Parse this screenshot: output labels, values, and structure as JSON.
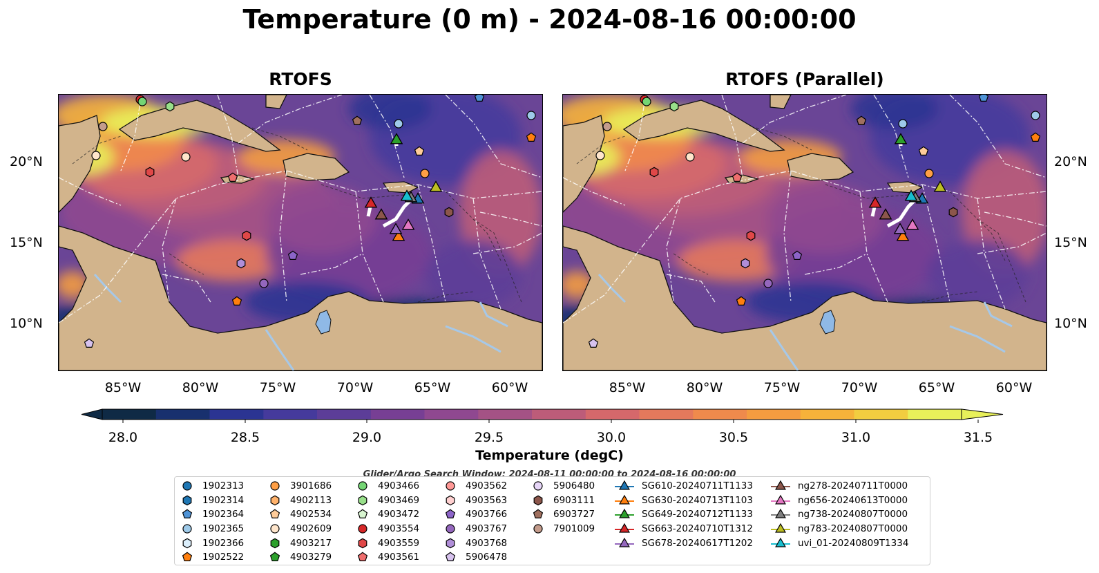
{
  "title": "Temperature (0 m) - 2024-08-16 00:00:00",
  "panels": [
    {
      "title": "RTOFS"
    },
    {
      "title": "RTOFS (Parallel)"
    }
  ],
  "axes": {
    "lat_labels": [
      "20°N",
      "15°N",
      "10°N"
    ],
    "lon_labels": [
      "85°W",
      "80°W",
      "75°W",
      "70°W",
      "65°W",
      "60°W"
    ]
  },
  "colorbar": {
    "label": "Temperature (degC)",
    "ticks": [
      "28.0",
      "28.5",
      "29.0",
      "29.5",
      "30.0",
      "30.5",
      "31.0",
      "31.5"
    ],
    "colors": [
      "#0f2a45",
      "#18306e",
      "#2b3492",
      "#453a9c",
      "#5c3d98",
      "#773f94",
      "#8f4890",
      "#a45285",
      "#bd5c79",
      "#d5686b",
      "#e4795c",
      "#ef8a4c",
      "#f49c40",
      "#f6b23a",
      "#f2cd40",
      "#e8f05a"
    ]
  },
  "search_window": "Glider/Argo Search Window: 2024-08-11 00:00:00 to 2024-08-16 00:00:00",
  "legend": {
    "argo": [
      {
        "label": "1902313",
        "shape": "circle",
        "color": "#1f77b4"
      },
      {
        "label": "1902314",
        "shape": "hexagon",
        "color": "#1f77b4"
      },
      {
        "label": "1902364",
        "shape": "pentagon",
        "color": "#4f93d6"
      },
      {
        "label": "1902365",
        "shape": "circle",
        "color": "#9ecae9"
      },
      {
        "label": "1902366",
        "shape": "hexagon",
        "color": "#dbeefb"
      },
      {
        "label": "1902522",
        "shape": "pentagon",
        "color": "#ff7f0e"
      },
      {
        "label": "3901686",
        "shape": "circle",
        "color": "#ff9f45"
      },
      {
        "label": "4902113",
        "shape": "hexagon",
        "color": "#ffb26b"
      },
      {
        "label": "4902534",
        "shape": "pentagon",
        "color": "#ffcc99"
      },
      {
        "label": "4902609",
        "shape": "circle",
        "color": "#ffe6cc"
      },
      {
        "label": "4903217",
        "shape": "hexagon",
        "color": "#2ca02c"
      },
      {
        "label": "4903279",
        "shape": "pentagon",
        "color": "#2ca02c"
      },
      {
        "label": "4903466",
        "shape": "circle",
        "color": "#74d574"
      },
      {
        "label": "4903469",
        "shape": "hexagon",
        "color": "#98df8a"
      },
      {
        "label": "4903472",
        "shape": "pentagon",
        "color": "#d8f5d0"
      },
      {
        "label": "4903554",
        "shape": "circle",
        "color": "#d62728"
      },
      {
        "label": "4903559",
        "shape": "hexagon",
        "color": "#e04848"
      },
      {
        "label": "4903561",
        "shape": "pentagon",
        "color": "#ef6e6e"
      },
      {
        "label": "4903562",
        "shape": "circle",
        "color": "#ff9896"
      },
      {
        "label": "4903563",
        "shape": "hexagon",
        "color": "#ffd0d0"
      },
      {
        "label": "4903766",
        "shape": "pentagon",
        "color": "#8c64c8"
      },
      {
        "label": "4903767",
        "shape": "circle",
        "color": "#9467bd"
      },
      {
        "label": "4903768",
        "shape": "hexagon",
        "color": "#b08ed8"
      },
      {
        "label": "5906478",
        "shape": "pentagon",
        "color": "#d7c2ee"
      },
      {
        "label": "5906480",
        "shape": "circle",
        "color": "#e6d5f7"
      },
      {
        "label": "6903111",
        "shape": "hexagon",
        "color": "#8c564b"
      },
      {
        "label": "6903727",
        "shape": "pentagon",
        "color": "#a0705f"
      },
      {
        "label": "7901009",
        "shape": "circle",
        "color": "#c49c8c"
      }
    ],
    "gliders": [
      {
        "label": "SG610-20240711T1133",
        "color": "#1f77b4"
      },
      {
        "label": "SG630-20240713T1103",
        "color": "#ff7f0e"
      },
      {
        "label": "SG649-20240712T1133",
        "color": "#2ca02c"
      },
      {
        "label": "SG663-20240710T1312",
        "color": "#d62728"
      },
      {
        "label": "SG678-20240617T1202",
        "color": "#9467bd"
      },
      {
        "label": "ng278-20240711T0000",
        "color": "#8c564b"
      },
      {
        "label": "ng656-20240613T0000",
        "color": "#e377c2"
      },
      {
        "label": "ng738-20240807T0000",
        "color": "#7f7f7f"
      },
      {
        "label": "ng783-20240807T0000",
        "color": "#bcbd22"
      },
      {
        "label": "uvi_01-20240809T1334",
        "color": "#17becf"
      }
    ]
  },
  "colors": {
    "land": "#d2b48c",
    "sea_bg": "#6a4596",
    "lake": "#8fb9e6",
    "river": "#a6c8e8"
  }
}
